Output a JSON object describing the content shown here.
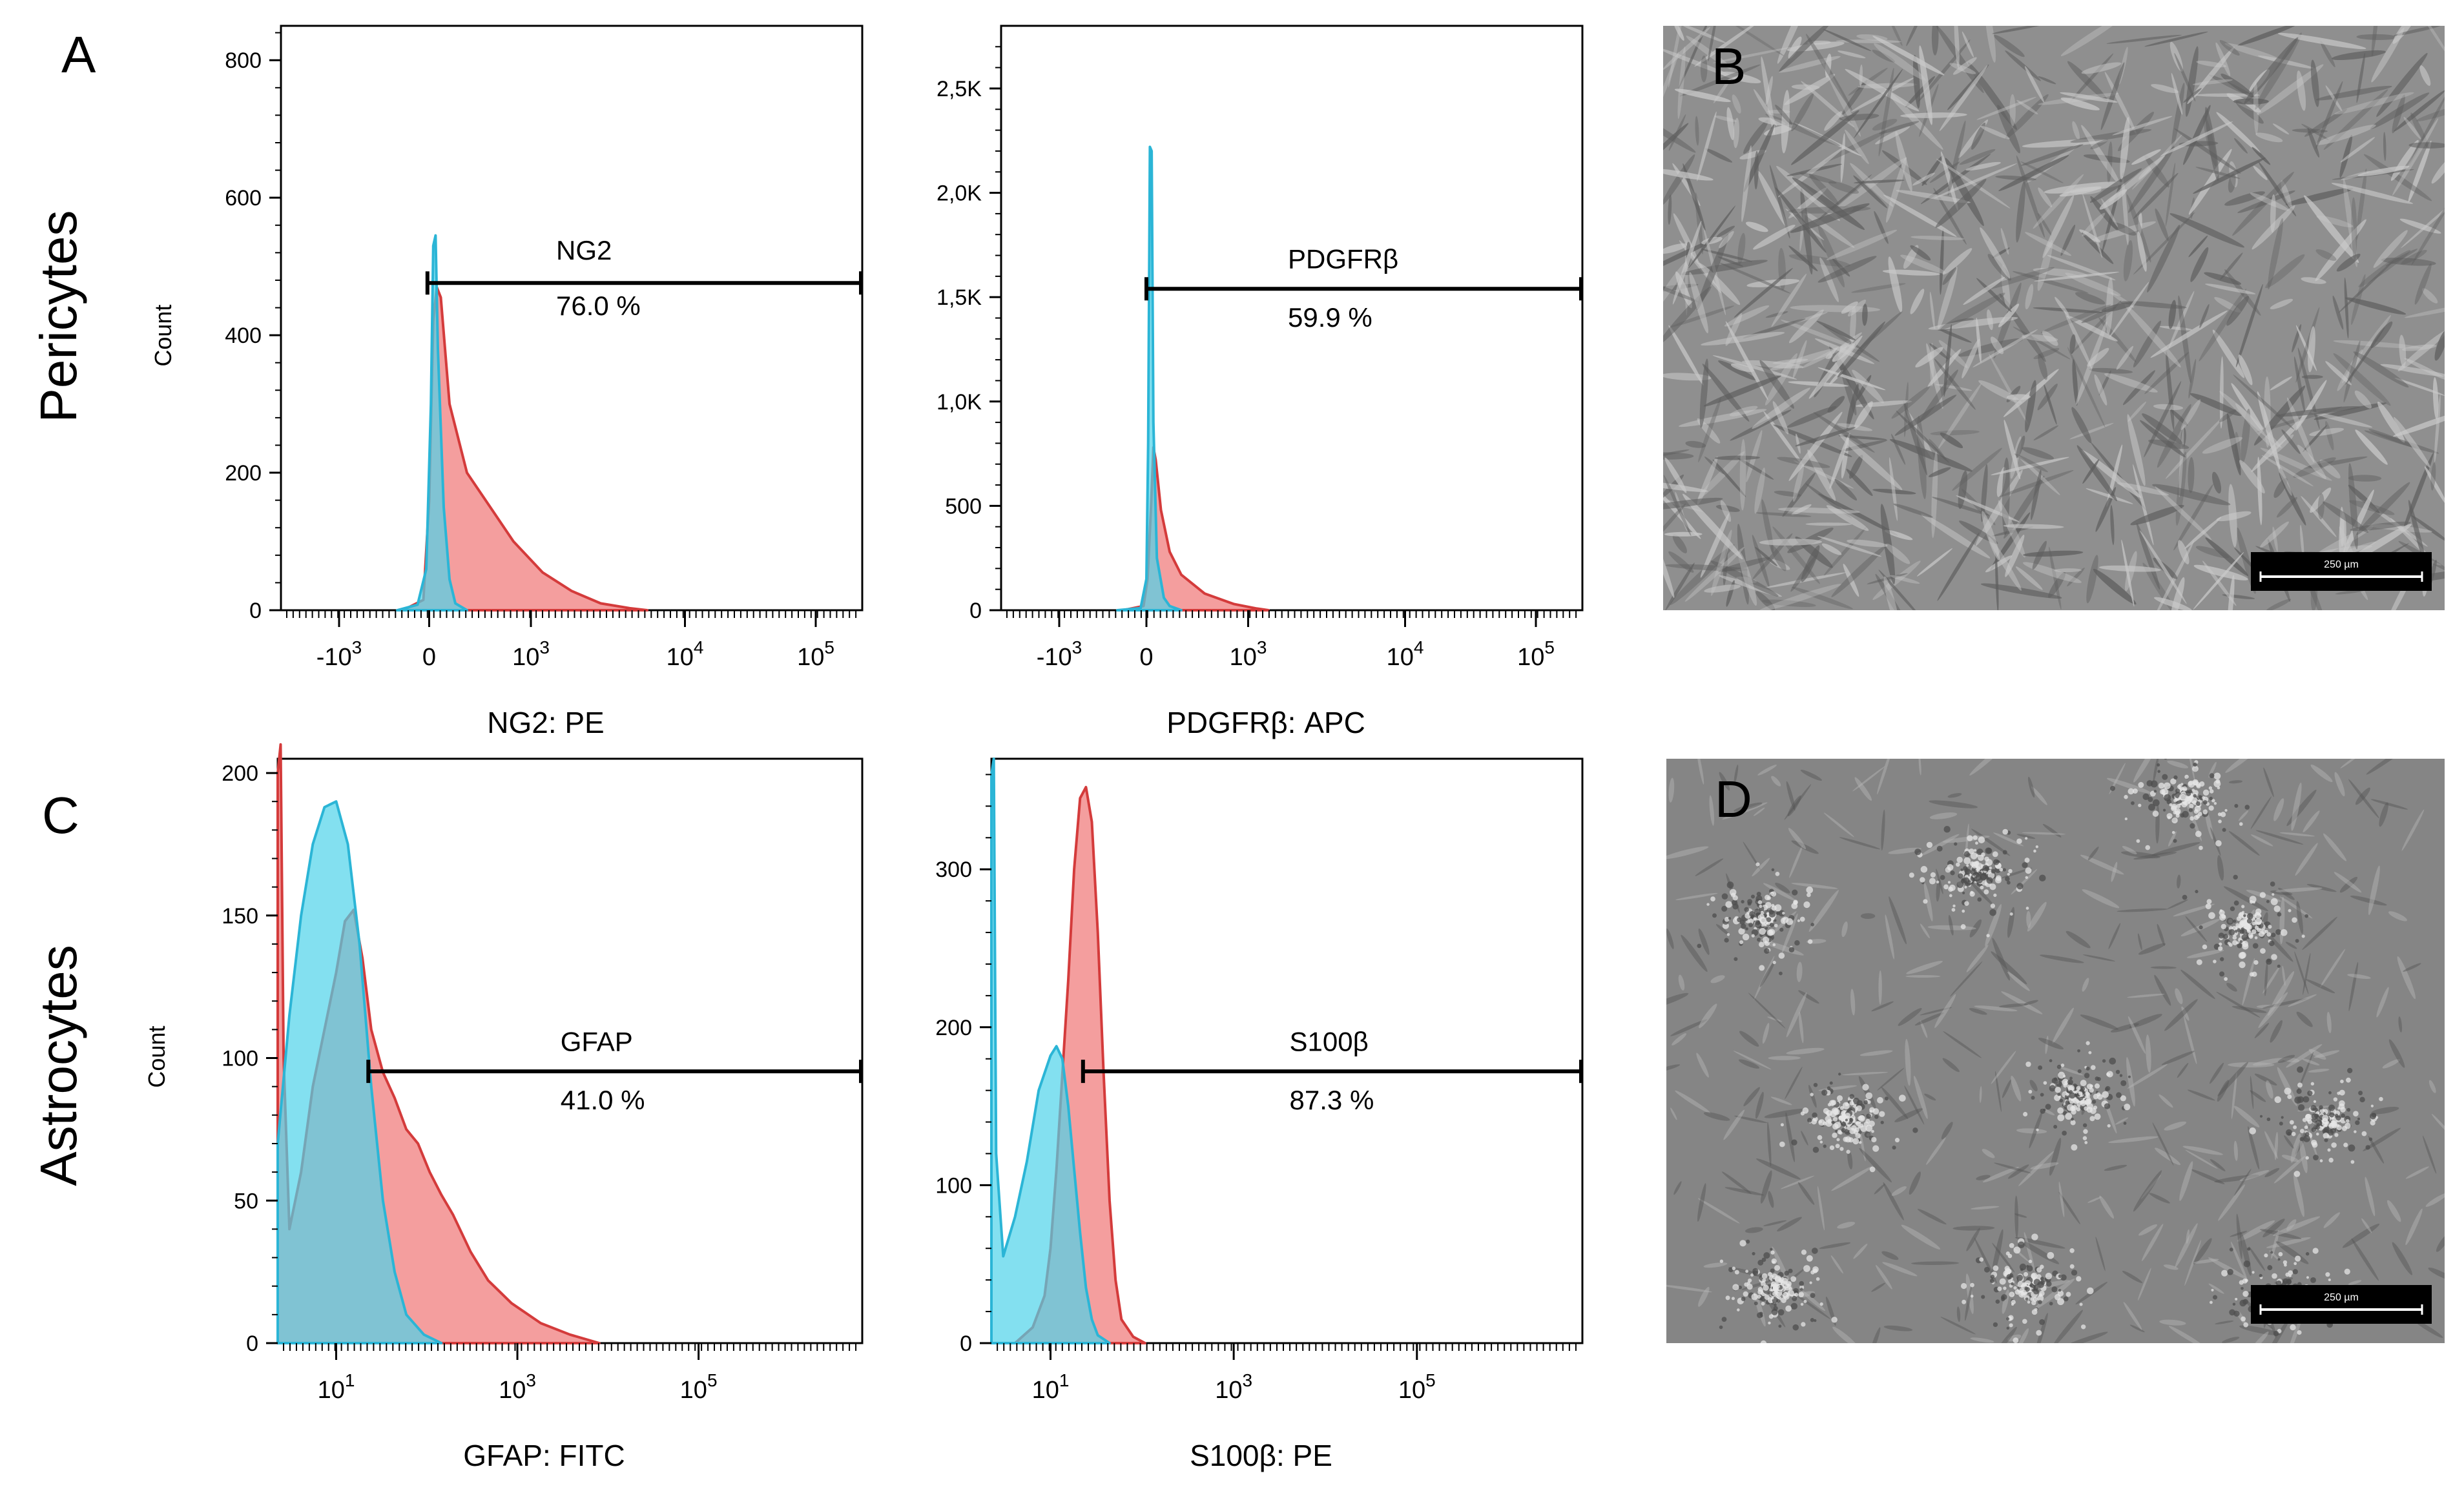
{
  "colors": {
    "control": "#4fd3ea",
    "stained": "#f28d8d",
    "overlap": "#b89aa4",
    "stained_line": "#d43b3b",
    "control_line": "#2bb5d6"
  },
  "rows": [
    {
      "label": "Pericytes"
    },
    {
      "label": "Astrocytes"
    }
  ],
  "panels": [
    {
      "letter": "A"
    },
    {
      "letter": "B"
    },
    {
      "letter": "C"
    },
    {
      "letter": "D"
    }
  ],
  "micrographs": [
    {
      "panel": "B",
      "scalebar": "250 µm",
      "texture": "spindle"
    },
    {
      "panel": "D",
      "scalebar": "250 µm",
      "texture": "granular"
    }
  ],
  "chart_data": [
    {
      "panel": "A",
      "type": "area",
      "xscale": "biexponential",
      "xlabel": "NG2: PE",
      "ylabel": "Count",
      "ylim": [
        0,
        850
      ],
      "yticks": [
        "0",
        "200",
        "400",
        "600",
        "800"
      ],
      "ytick_values": [
        0,
        200,
        400,
        600,
        800
      ],
      "xticks": [
        "-10^3",
        "0",
        "10^3",
        "10^4",
        "10^5"
      ],
      "gate": {
        "label": "NG2",
        "percent": "76.0 %"
      },
      "series": [
        {
          "role": "control",
          "points": [
            [
              0.2,
              0
            ],
            [
              0.235,
              8
            ],
            [
              0.25,
              60
            ],
            [
              0.258,
              300
            ],
            [
              0.262,
              530
            ],
            [
              0.266,
              545
            ],
            [
              0.27,
              380
            ],
            [
              0.28,
              150
            ],
            [
              0.29,
              45
            ],
            [
              0.3,
              10
            ],
            [
              0.32,
              0
            ]
          ]
        },
        {
          "role": "stained",
          "points": [
            [
              0.21,
              0
            ],
            [
              0.245,
              15
            ],
            [
              0.255,
              160
            ],
            [
              0.262,
              420
            ],
            [
              0.268,
              470
            ],
            [
              0.275,
              455
            ],
            [
              0.29,
              300
            ],
            [
              0.32,
              200
            ],
            [
              0.36,
              150
            ],
            [
              0.4,
              100
            ],
            [
              0.45,
              55
            ],
            [
              0.5,
              28
            ],
            [
              0.55,
              10
            ],
            [
              0.6,
              3
            ],
            [
              0.63,
              0
            ]
          ]
        }
      ]
    },
    {
      "panel": "A",
      "type": "area",
      "xscale": "biexponential",
      "xlabel": "PDGFRβ: APC",
      "ylabel": "",
      "ylim": [
        0,
        2800
      ],
      "yticks": [
        "0",
        "500",
        "1,0K",
        "1,5K",
        "2,0K",
        "2,5K"
      ],
      "ytick_values": [
        0,
        500,
        1000,
        1500,
        2000,
        2500
      ],
      "xticks": [
        "-10^3",
        "0",
        "10^3",
        "10^4",
        "10^5"
      ],
      "gate": {
        "label": "PDGFRβ",
        "percent": "59.9 %"
      },
      "series": [
        {
          "role": "control",
          "points": [
            [
              0.2,
              0
            ],
            [
              0.24,
              10
            ],
            [
              0.25,
              150
            ],
            [
              0.253,
              800
            ],
            [
              0.256,
              2220
            ],
            [
              0.259,
              2200
            ],
            [
              0.262,
              900
            ],
            [
              0.268,
              250
            ],
            [
              0.28,
              60
            ],
            [
              0.29,
              20
            ],
            [
              0.31,
              0
            ]
          ]
        },
        {
          "role": "stained",
          "points": [
            [
              0.21,
              0
            ],
            [
              0.245,
              20
            ],
            [
              0.252,
              150
            ],
            [
              0.258,
              500
            ],
            [
              0.262,
              780
            ],
            [
              0.266,
              720
            ],
            [
              0.275,
              480
            ],
            [
              0.29,
              280
            ],
            [
              0.31,
              170
            ],
            [
              0.35,
              80
            ],
            [
              0.4,
              30
            ],
            [
              0.44,
              8
            ],
            [
              0.46,
              0
            ]
          ]
        }
      ]
    },
    {
      "panel": "C",
      "type": "area",
      "xscale": "log",
      "xlabel": "GFAP: FITC",
      "ylabel": "Count",
      "ylim": [
        0,
        205
      ],
      "yticks": [
        "0",
        "50",
        "100",
        "150",
        "200"
      ],
      "ytick_values": [
        0,
        50,
        100,
        150,
        200
      ],
      "xticks": [
        "10^1",
        "10^3",
        "10^5"
      ],
      "gate": {
        "label": "GFAP",
        "percent": "41.0 %"
      },
      "series": [
        {
          "role": "control",
          "points": [
            [
              0.0,
              70
            ],
            [
              0.02,
              115
            ],
            [
              0.04,
              150
            ],
            [
              0.06,
              175
            ],
            [
              0.08,
              188
            ],
            [
              0.1,
              190
            ],
            [
              0.12,
              175
            ],
            [
              0.14,
              140
            ],
            [
              0.16,
              90
            ],
            [
              0.18,
              50
            ],
            [
              0.2,
              25
            ],
            [
              0.22,
              10
            ],
            [
              0.25,
              3
            ],
            [
              0.28,
              0
            ]
          ]
        },
        {
          "role": "stained",
          "points": [
            [
              0.0,
              200
            ],
            [
              0.005,
              210
            ],
            [
              0.01,
              100
            ],
            [
              0.02,
              40
            ],
            [
              0.04,
              60
            ],
            [
              0.06,
              90
            ],
            [
              0.08,
              110
            ],
            [
              0.1,
              130
            ],
            [
              0.115,
              148
            ],
            [
              0.13,
              152
            ],
            [
              0.145,
              135
            ],
            [
              0.16,
              110
            ],
            [
              0.18,
              95
            ],
            [
              0.2,
              86
            ],
            [
              0.22,
              75
            ],
            [
              0.24,
              70
            ],
            [
              0.26,
              60
            ],
            [
              0.28,
              52
            ],
            [
              0.3,
              45
            ],
            [
              0.33,
              32
            ],
            [
              0.36,
              22
            ],
            [
              0.4,
              14
            ],
            [
              0.45,
              7
            ],
            [
              0.5,
              3
            ],
            [
              0.55,
              0
            ]
          ]
        }
      ]
    },
    {
      "panel": "C",
      "type": "area",
      "xscale": "log",
      "xlabel": "S100β: PE",
      "ylabel": "",
      "ylim": [
        0,
        370
      ],
      "yticks": [
        "0",
        "100",
        "200",
        "300"
      ],
      "ytick_values": [
        0,
        100,
        200,
        300
      ],
      "xticks": [
        "10^1",
        "10^3",
        "10^5"
      ],
      "gate": {
        "label": "S100β",
        "percent": "87.3 %"
      },
      "series": [
        {
          "role": "control",
          "points": [
            [
              0.0,
              360
            ],
            [
              0.004,
              370
            ],
            [
              0.008,
              120
            ],
            [
              0.02,
              55
            ],
            [
              0.04,
              80
            ],
            [
              0.06,
              115
            ],
            [
              0.08,
              160
            ],
            [
              0.1,
              182
            ],
            [
              0.11,
              188
            ],
            [
              0.12,
              180
            ],
            [
              0.13,
              150
            ],
            [
              0.14,
              110
            ],
            [
              0.15,
              70
            ],
            [
              0.16,
              35
            ],
            [
              0.17,
              15
            ],
            [
              0.18,
              5
            ],
            [
              0.2,
              0
            ]
          ]
        },
        {
          "role": "stained",
          "points": [
            [
              0.04,
              0
            ],
            [
              0.07,
              10
            ],
            [
              0.09,
              30
            ],
            [
              0.1,
              60
            ],
            [
              0.11,
              110
            ],
            [
              0.12,
              170
            ],
            [
              0.13,
              230
            ],
            [
              0.14,
              300
            ],
            [
              0.15,
              345
            ],
            [
              0.16,
              352
            ],
            [
              0.17,
              330
            ],
            [
              0.18,
              260
            ],
            [
              0.19,
              170
            ],
            [
              0.2,
              90
            ],
            [
              0.21,
              40
            ],
            [
              0.22,
              15
            ],
            [
              0.24,
              4
            ],
            [
              0.26,
              0
            ]
          ]
        }
      ]
    }
  ]
}
